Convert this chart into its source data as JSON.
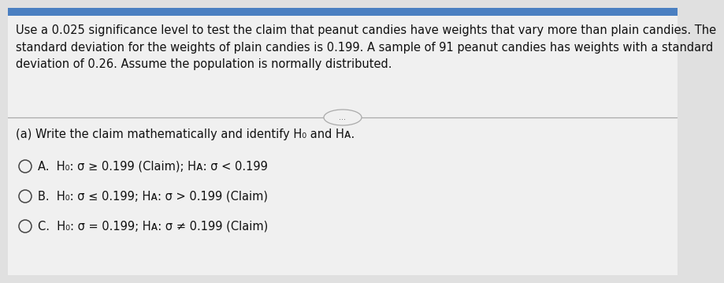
{
  "overall_bg": "#e0e0e0",
  "top_strip_color": "#4a7fc1",
  "content_bg": "#f0f0f0",
  "top_text": "Use a 0.025 significance level to test the claim that peanut candies have weights that vary more than plain candies. The\nstandard deviation for the weights of plain candies is 0.199. A sample of 91 peanut candies has weights with a standard\ndeviation of 0.26. Assume the population is normally distributed.",
  "question": "(a) Write the claim mathematically and identify H₀ and Hᴀ.",
  "option_A_pre": "A.  H₀: σ ≥ 0.199 (Claim); Hᴀ: σ < 0.199",
  "option_B_pre": "B.  H₀: σ ≤ 0.199; Hᴀ: σ > 0.199 (Claim)",
  "option_C_pre": "C.  H₀: σ = 0.199; Hᴀ: σ ≠ 0.199 (Claim)",
  "text_color": "#111111",
  "divider_color": "#aaaaaa",
  "font_size_top": 10.5,
  "font_size_question": 10.5,
  "font_size_option": 10.5,
  "circle_color": "#444444"
}
